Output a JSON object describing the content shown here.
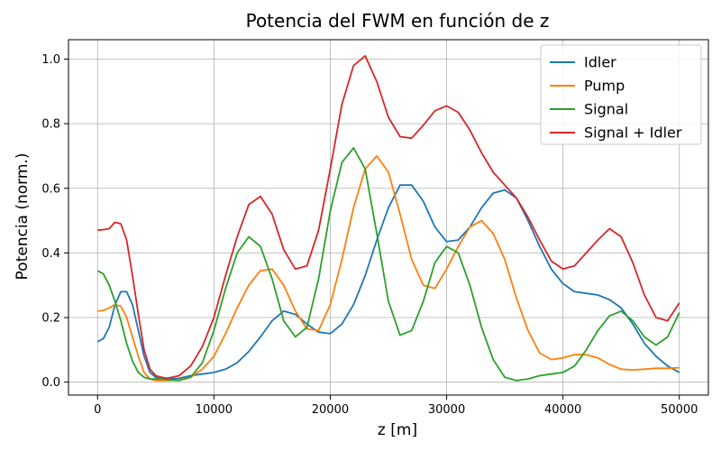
{
  "chart_data": {
    "type": "line",
    "title": "Potencia del FWM en función de z",
    "xlabel": "z [m]",
    "ylabel": "Potencia (norm.)",
    "xlim": [
      -2500,
      52500
    ],
    "ylim": [
      -0.04,
      1.06
    ],
    "xticks": [
      0,
      10000,
      20000,
      30000,
      40000,
      50000
    ],
    "yticks": [
      0.0,
      0.2,
      0.4,
      0.6,
      0.8,
      1.0
    ],
    "xtick_labels": [
      "0",
      "10000",
      "20000",
      "30000",
      "40000",
      "50000"
    ],
    "ytick_labels": [
      "0.0",
      "0.2",
      "0.4",
      "0.6",
      "0.8",
      "1.0"
    ],
    "grid": true,
    "legend_position": "top-right",
    "series": [
      {
        "name": "Idler",
        "color": "#1f77b4",
        "x": [
          0,
          500,
          1000,
          1500,
          2000,
          2500,
          3000,
          3500,
          4000,
          4500,
          5000,
          5500,
          6000,
          7000,
          8000,
          9000,
          10000,
          11000,
          12000,
          13000,
          14000,
          15000,
          16000,
          17000,
          18000,
          19000,
          20000,
          21000,
          22000,
          23000,
          24000,
          25000,
          26000,
          27000,
          28000,
          29000,
          30000,
          31000,
          32000,
          33000,
          34000,
          35000,
          36000,
          37000,
          38000,
          39000,
          40000,
          41000,
          42000,
          43000,
          44000,
          45000,
          46000,
          47000,
          48000,
          49000,
          50000
        ],
        "y": [
          0.125,
          0.135,
          0.17,
          0.24,
          0.28,
          0.28,
          0.24,
          0.16,
          0.08,
          0.03,
          0.015,
          0.01,
          0.01,
          0.012,
          0.02,
          0.025,
          0.03,
          0.04,
          0.06,
          0.095,
          0.14,
          0.19,
          0.22,
          0.21,
          0.18,
          0.155,
          0.15,
          0.18,
          0.24,
          0.33,
          0.44,
          0.54,
          0.61,
          0.61,
          0.56,
          0.48,
          0.435,
          0.44,
          0.48,
          0.54,
          0.585,
          0.595,
          0.57,
          0.5,
          0.42,
          0.35,
          0.305,
          0.28,
          0.275,
          0.27,
          0.255,
          0.23,
          0.18,
          0.12,
          0.08,
          0.05,
          0.03
        ]
      },
      {
        "name": "Pump",
        "color": "#ff7f0e",
        "x": [
          0,
          500,
          1000,
          1500,
          2000,
          2500,
          3000,
          3500,
          4000,
          4500,
          5000,
          5500,
          6000,
          7000,
          8000,
          9000,
          10000,
          11000,
          12000,
          13000,
          14000,
          15000,
          16000,
          17000,
          18000,
          19000,
          20000,
          21000,
          22000,
          23000,
          24000,
          25000,
          26000,
          27000,
          28000,
          29000,
          30000,
          31000,
          32000,
          33000,
          34000,
          35000,
          36000,
          37000,
          38000,
          39000,
          40000,
          41000,
          42000,
          43000,
          44000,
          45000,
          46000,
          47000,
          48000,
          49000,
          50000
        ],
        "y": [
          0.22,
          0.222,
          0.23,
          0.24,
          0.235,
          0.2,
          0.14,
          0.08,
          0.03,
          0.01,
          0.005,
          0.005,
          0.005,
          0.007,
          0.015,
          0.04,
          0.08,
          0.15,
          0.23,
          0.3,
          0.345,
          0.35,
          0.3,
          0.22,
          0.165,
          0.16,
          0.24,
          0.38,
          0.54,
          0.66,
          0.7,
          0.65,
          0.52,
          0.38,
          0.3,
          0.29,
          0.35,
          0.42,
          0.48,
          0.5,
          0.46,
          0.38,
          0.26,
          0.16,
          0.09,
          0.07,
          0.075,
          0.085,
          0.085,
          0.075,
          0.055,
          0.04,
          0.038,
          0.04,
          0.043,
          0.043,
          0.045
        ]
      },
      {
        "name": "Signal",
        "color": "#2ca02c",
        "x": [
          0,
          500,
          1000,
          1500,
          2000,
          2500,
          3000,
          3500,
          4000,
          4500,
          5000,
          5500,
          6000,
          7000,
          8000,
          9000,
          10000,
          11000,
          12000,
          13000,
          14000,
          15000,
          16000,
          17000,
          18000,
          19000,
          20000,
          21000,
          22000,
          23000,
          24000,
          25000,
          26000,
          27000,
          28000,
          29000,
          30000,
          31000,
          32000,
          33000,
          34000,
          35000,
          36000,
          37000,
          38000,
          39000,
          40000,
          41000,
          42000,
          43000,
          44000,
          45000,
          46000,
          47000,
          48000,
          49000,
          50000
        ],
        "y": [
          0.345,
          0.335,
          0.3,
          0.25,
          0.19,
          0.12,
          0.065,
          0.03,
          0.015,
          0.01,
          0.01,
          0.01,
          0.008,
          0.005,
          0.015,
          0.06,
          0.16,
          0.29,
          0.4,
          0.45,
          0.42,
          0.32,
          0.19,
          0.14,
          0.17,
          0.32,
          0.53,
          0.68,
          0.725,
          0.66,
          0.46,
          0.25,
          0.145,
          0.16,
          0.25,
          0.37,
          0.42,
          0.4,
          0.3,
          0.17,
          0.07,
          0.015,
          0.005,
          0.01,
          0.02,
          0.025,
          0.03,
          0.05,
          0.1,
          0.16,
          0.205,
          0.22,
          0.19,
          0.14,
          0.115,
          0.14,
          0.215
        ]
      },
      {
        "name": "Signal + Idler",
        "color": "#d62728",
        "x": [
          0,
          500,
          1000,
          1500,
          2000,
          2500,
          3000,
          3500,
          4000,
          4500,
          5000,
          5500,
          6000,
          7000,
          8000,
          9000,
          10000,
          11000,
          12000,
          13000,
          14000,
          15000,
          16000,
          17000,
          18000,
          19000,
          20000,
          21000,
          22000,
          23000,
          24000,
          25000,
          26000,
          27000,
          28000,
          29000,
          30000,
          31000,
          32000,
          33000,
          34000,
          35000,
          36000,
          37000,
          38000,
          39000,
          40000,
          41000,
          42000,
          43000,
          44000,
          45000,
          46000,
          47000,
          48000,
          49000,
          50000
        ],
        "y": [
          0.47,
          0.472,
          0.475,
          0.495,
          0.49,
          0.44,
          0.33,
          0.21,
          0.1,
          0.04,
          0.02,
          0.015,
          0.012,
          0.02,
          0.05,
          0.11,
          0.2,
          0.33,
          0.45,
          0.55,
          0.575,
          0.52,
          0.41,
          0.35,
          0.36,
          0.47,
          0.66,
          0.86,
          0.98,
          1.01,
          0.93,
          0.82,
          0.76,
          0.755,
          0.795,
          0.84,
          0.855,
          0.835,
          0.78,
          0.71,
          0.65,
          0.61,
          0.57,
          0.51,
          0.44,
          0.375,
          0.35,
          0.36,
          0.4,
          0.44,
          0.475,
          0.45,
          0.37,
          0.27,
          0.2,
          0.19,
          0.245
        ]
      }
    ]
  }
}
